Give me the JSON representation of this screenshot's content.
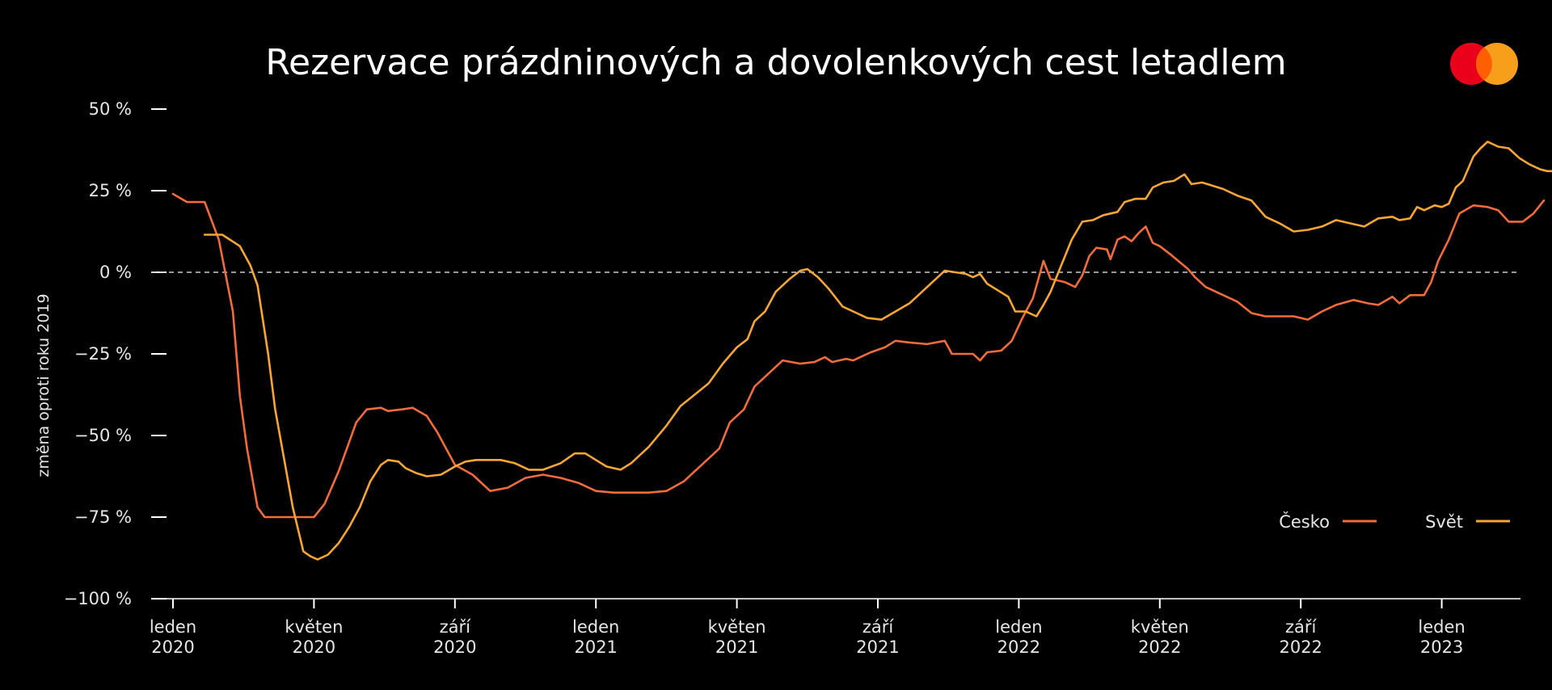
{
  "colors": {
    "background": "#000000",
    "text": "#ffffff",
    "cesko": "#f26b3a",
    "svet": "#f7a533",
    "logo_red": "#eb001b",
    "logo_yellow": "#f79e1b",
    "zero_line": "#cccccc"
  },
  "logo": {
    "icon": "mastercard-logo-icon"
  },
  "chart_data": {
    "type": "line",
    "title": "Rezervace prázdninových a dovolenkových cest letadlem",
    "ylabel": "změna oproti roku 2019",
    "xlabel": "",
    "ylim": [
      -100,
      50
    ],
    "xlim": [
      0,
      38.5
    ],
    "grid": false,
    "legend": "bottom-right",
    "reference_line": {
      "y": 0,
      "style": "dashed"
    },
    "y_ticks": [
      {
        "value": 50,
        "label": "50 %"
      },
      {
        "value": 25,
        "label": "25 %"
      },
      {
        "value": 0,
        "label": "0 %"
      },
      {
        "value": -25,
        "label": "−25 %"
      },
      {
        "value": -50,
        "label": "−50 %"
      },
      {
        "value": -75,
        "label": "−75 %"
      },
      {
        "value": -100,
        "label": "−100 %"
      }
    ],
    "x_ticks": [
      {
        "month": 0,
        "line1": "leden",
        "line2": "2020"
      },
      {
        "month": 4,
        "line1": "květen",
        "line2": "2020"
      },
      {
        "month": 8,
        "line1": "září",
        "line2": "2020"
      },
      {
        "month": 12,
        "line1": "leden",
        "line2": "2021"
      },
      {
        "month": 16,
        "line1": "květen",
        "line2": "2021"
      },
      {
        "month": 20,
        "line1": "září",
        "line2": "2021"
      },
      {
        "month": 24,
        "line1": "leden",
        "line2": "2022"
      },
      {
        "month": 28,
        "line1": "květen",
        "line2": "2022"
      },
      {
        "month": 32,
        "line1": "září",
        "line2": "2022"
      },
      {
        "month": 36,
        "line1": "leden",
        "line2": "2023"
      }
    ],
    "series": [
      {
        "name": "Česko",
        "color_key": "cesko",
        "points": [
          [
            0,
            24
          ],
          [
            0.4,
            21.5
          ],
          [
            0.9,
            21.5
          ],
          [
            1.3,
            10
          ],
          [
            1.7,
            -12
          ],
          [
            1.9,
            -38
          ],
          [
            2.1,
            -54
          ],
          [
            2.4,
            -72
          ],
          [
            2.6,
            -75
          ],
          [
            3.0,
            -75
          ],
          [
            3.5,
            -75
          ],
          [
            4.0,
            -75
          ],
          [
            4.3,
            -71
          ],
          [
            4.7,
            -61
          ],
          [
            5.0,
            -52
          ],
          [
            5.2,
            -46
          ],
          [
            5.5,
            -42
          ],
          [
            5.9,
            -41.5
          ],
          [
            6.1,
            -42.5
          ],
          [
            6.5,
            -42
          ],
          [
            6.8,
            -41.5
          ],
          [
            7.2,
            -44
          ],
          [
            7.5,
            -49
          ],
          [
            7.8,
            -55
          ],
          [
            8.0,
            -59
          ],
          [
            8.5,
            -62
          ],
          [
            9.0,
            -67
          ],
          [
            9.5,
            -66
          ],
          [
            10.0,
            -63
          ],
          [
            10.5,
            -62
          ],
          [
            11.0,
            -63
          ],
          [
            11.5,
            -64.5
          ],
          [
            12.0,
            -67
          ],
          [
            12.5,
            -67.5
          ],
          [
            13.0,
            -67.5
          ],
          [
            13.5,
            -67.5
          ],
          [
            14.0,
            -67
          ],
          [
            14.5,
            -64
          ],
          [
            15.0,
            -59
          ],
          [
            15.5,
            -54
          ],
          [
            15.8,
            -46
          ],
          [
            16.2,
            -42
          ],
          [
            16.5,
            -35
          ],
          [
            17.0,
            -30
          ],
          [
            17.3,
            -27
          ],
          [
            17.8,
            -28
          ],
          [
            18.2,
            -27.5
          ],
          [
            18.5,
            -26
          ],
          [
            18.7,
            -27.5
          ],
          [
            19.1,
            -26.5
          ],
          [
            19.3,
            -27
          ],
          [
            19.8,
            -24.5
          ],
          [
            20.2,
            -23
          ],
          [
            20.5,
            -21
          ],
          [
            20.9,
            -21.5
          ],
          [
            21.4,
            -22
          ],
          [
            21.9,
            -21
          ],
          [
            22.1,
            -25
          ],
          [
            22.5,
            -25
          ],
          [
            22.7,
            -25
          ],
          [
            22.9,
            -27
          ],
          [
            23.1,
            -24.5
          ],
          [
            23.5,
            -24
          ],
          [
            23.8,
            -21
          ],
          [
            24.1,
            -14
          ],
          [
            24.4,
            -8
          ],
          [
            24.7,
            3.5
          ],
          [
            24.9,
            -2
          ],
          [
            25.3,
            -3
          ],
          [
            25.6,
            -4.5
          ],
          [
            25.8,
            -1
          ],
          [
            26.0,
            5
          ],
          [
            26.2,
            7.5
          ],
          [
            26.5,
            7
          ],
          [
            26.6,
            4
          ],
          [
            26.8,
            10
          ],
          [
            27.0,
            11
          ],
          [
            27.2,
            9.5
          ],
          [
            27.4,
            12
          ],
          [
            27.6,
            14
          ],
          [
            27.8,
            9
          ],
          [
            28.0,
            8
          ],
          [
            28.3,
            5.5
          ],
          [
            28.8,
            1
          ],
          [
            29.0,
            -1.5
          ],
          [
            29.3,
            -4.5
          ],
          [
            29.8,
            -7
          ],
          [
            30.2,
            -9
          ],
          [
            30.6,
            -12.5
          ],
          [
            31.0,
            -13.5
          ],
          [
            31.6,
            -13.5
          ],
          [
            31.8,
            -13.5
          ],
          [
            32.2,
            -14.5
          ],
          [
            32.6,
            -12
          ],
          [
            33.0,
            -10
          ],
          [
            33.5,
            -8.5
          ],
          [
            33.9,
            -9.5
          ],
          [
            34.2,
            -10
          ],
          [
            34.6,
            -7.5
          ],
          [
            34.8,
            -9.5
          ],
          [
            35.1,
            -7
          ],
          [
            35.5,
            -7
          ],
          [
            35.7,
            -3
          ],
          [
            35.9,
            3.5
          ],
          [
            36.2,
            10
          ],
          [
            36.5,
            18
          ],
          [
            36.9,
            20.5
          ],
          [
            37.3,
            20
          ],
          [
            37.6,
            19
          ],
          [
            37.9,
            15.5
          ],
          [
            38.3,
            15.5
          ],
          [
            38.6,
            18
          ],
          [
            38.9,
            22
          ]
        ]
      },
      {
        "name": "Svět",
        "color_key": "svet",
        "points": [
          [
            0.9,
            11.5
          ],
          [
            1.4,
            11.5
          ],
          [
            1.9,
            8
          ],
          [
            2.2,
            2
          ],
          [
            2.4,
            -4
          ],
          [
            2.7,
            -25
          ],
          [
            2.9,
            -42
          ],
          [
            3.2,
            -60
          ],
          [
            3.4,
            -72
          ],
          [
            3.7,
            -85.5
          ],
          [
            3.9,
            -87
          ],
          [
            4.1,
            -88
          ],
          [
            4.4,
            -86.5
          ],
          [
            4.7,
            -83
          ],
          [
            5.0,
            -78
          ],
          [
            5.3,
            -72
          ],
          [
            5.6,
            -64
          ],
          [
            5.9,
            -59
          ],
          [
            6.1,
            -57.5
          ],
          [
            6.4,
            -58
          ],
          [
            6.6,
            -60
          ],
          [
            6.9,
            -61.5
          ],
          [
            7.2,
            -62.5
          ],
          [
            7.6,
            -62
          ],
          [
            8.0,
            -59.5
          ],
          [
            8.3,
            -58
          ],
          [
            8.6,
            -57.5
          ],
          [
            9.0,
            -57.5
          ],
          [
            9.3,
            -57.5
          ],
          [
            9.7,
            -58.5
          ],
          [
            10.1,
            -60.5
          ],
          [
            10.5,
            -60.5
          ],
          [
            11.0,
            -58.5
          ],
          [
            11.4,
            -55.5
          ],
          [
            11.7,
            -55.5
          ],
          [
            12.0,
            -57.5
          ],
          [
            12.3,
            -59.5
          ],
          [
            12.7,
            -60.5
          ],
          [
            13.0,
            -58.5
          ],
          [
            13.5,
            -53.5
          ],
          [
            14.0,
            -47
          ],
          [
            14.4,
            -41
          ],
          [
            14.8,
            -37.5
          ],
          [
            15.2,
            -34
          ],
          [
            15.6,
            -28
          ],
          [
            16.0,
            -23
          ],
          [
            16.3,
            -20.5
          ],
          [
            16.5,
            -15
          ],
          [
            16.8,
            -12
          ],
          [
            17.1,
            -6
          ],
          [
            17.5,
            -2
          ],
          [
            17.8,
            0.5
          ],
          [
            18.0,
            1
          ],
          [
            18.3,
            -1.5
          ],
          [
            18.6,
            -5
          ],
          [
            19.0,
            -10.5
          ],
          [
            19.4,
            -12.5
          ],
          [
            19.7,
            -14
          ],
          [
            20.1,
            -14.5
          ],
          [
            20.5,
            -12
          ],
          [
            20.9,
            -9.5
          ],
          [
            21.3,
            -5.5
          ],
          [
            21.6,
            -2.5
          ],
          [
            21.9,
            0.5
          ],
          [
            22.2,
            0
          ],
          [
            22.5,
            -0.5
          ],
          [
            22.7,
            -1.5
          ],
          [
            22.9,
            -0.5
          ],
          [
            23.1,
            -3.5
          ],
          [
            23.4,
            -5.5
          ],
          [
            23.7,
            -7.5
          ],
          [
            23.9,
            -12
          ],
          [
            24.2,
            -12
          ],
          [
            24.5,
            -13.5
          ],
          [
            24.7,
            -10
          ],
          [
            24.9,
            -6
          ],
          [
            25.2,
            2
          ],
          [
            25.5,
            10
          ],
          [
            25.8,
            15.5
          ],
          [
            26.1,
            16
          ],
          [
            26.4,
            17.5
          ],
          [
            26.8,
            18.5
          ],
          [
            27.0,
            21.5
          ],
          [
            27.3,
            22.5
          ],
          [
            27.6,
            22.5
          ],
          [
            27.8,
            26
          ],
          [
            28.1,
            27.5
          ],
          [
            28.4,
            28
          ],
          [
            28.7,
            30
          ],
          [
            28.9,
            27
          ],
          [
            29.2,
            27.5
          ],
          [
            29.5,
            26.5
          ],
          [
            29.8,
            25.5
          ],
          [
            30.2,
            23.5
          ],
          [
            30.6,
            22
          ],
          [
            31.0,
            17
          ],
          [
            31.4,
            15
          ],
          [
            31.8,
            12.5
          ],
          [
            32.2,
            13
          ],
          [
            32.6,
            14
          ],
          [
            33.0,
            16
          ],
          [
            33.4,
            15
          ],
          [
            33.8,
            14
          ],
          [
            34.2,
            16.5
          ],
          [
            34.6,
            17
          ],
          [
            34.8,
            16
          ],
          [
            35.1,
            16.5
          ],
          [
            35.3,
            20
          ],
          [
            35.5,
            19
          ],
          [
            35.8,
            20.5
          ],
          [
            36.0,
            20
          ],
          [
            36.2,
            21
          ],
          [
            36.4,
            26
          ],
          [
            36.6,
            28
          ],
          [
            36.9,
            35.5
          ],
          [
            37.1,
            38
          ],
          [
            37.3,
            40
          ],
          [
            37.6,
            38.5
          ],
          [
            37.9,
            38
          ],
          [
            38.2,
            35
          ],
          [
            38.5,
            33
          ],
          [
            38.8,
            31.5
          ],
          [
            39.0,
            31
          ],
          [
            39.2,
            31
          ]
        ]
      }
    ]
  }
}
